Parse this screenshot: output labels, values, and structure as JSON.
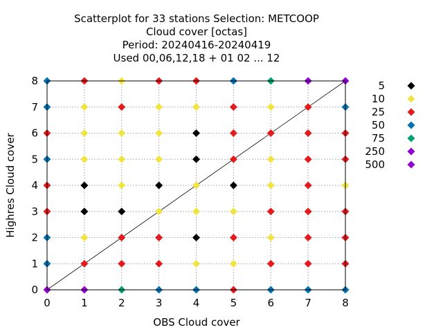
{
  "chart_data": {
    "type": "scatter",
    "title_lines": [
      "Scatterplot for   33 stations Selection: METCOOP",
      "Cloud cover [octas]",
      "Period: 20240416-20240419",
      "Used  00,06,12,18 + 01 02 ... 12"
    ],
    "xlabel": "OBS Cloud cover",
    "ylabel": "Highres Cloud cover",
    "xlim": [
      0,
      8
    ],
    "ylim": [
      0,
      8
    ],
    "x_ticks": [
      "0",
      "1",
      "2",
      "3",
      "4",
      "5",
      "6",
      "7",
      "8"
    ],
    "y_ticks": [
      "0",
      "1",
      "2",
      "3",
      "4",
      "5",
      "6",
      "7",
      "8"
    ],
    "grid": true,
    "diagonal": "y = x reference line",
    "legend_position": "right",
    "legend": [
      {
        "label": "5",
        "color": "#000000"
      },
      {
        "label": "10",
        "color": "#f0e442"
      },
      {
        "label": "25",
        "color": "#e41a1c"
      },
      {
        "label": "50",
        "color": "#0072b2"
      },
      {
        "label": "75",
        "color": "#009e73"
      },
      {
        "label": "250",
        "color": "#9400d3"
      },
      {
        "label": "500",
        "color": "#9400d3"
      }
    ],
    "points_grid_rows_y8_to_y0": [
      [
        50,
        25,
        10,
        25,
        25,
        50,
        75,
        500,
        500
      ],
      [
        50,
        10,
        25,
        10,
        10,
        25,
        10,
        25,
        50
      ],
      [
        25,
        10,
        10,
        10,
        5,
        25,
        25,
        25,
        25
      ],
      [
        50,
        10,
        10,
        10,
        5,
        25,
        10,
        25,
        25
      ],
      [
        25,
        5,
        10,
        5,
        10,
        5,
        10,
        25,
        10
      ],
      [
        25,
        5,
        5,
        10,
        10,
        10,
        25,
        25,
        25
      ],
      [
        50,
        10,
        25,
        25,
        5,
        25,
        10,
        25,
        25
      ],
      [
        50,
        25,
        25,
        25,
        10,
        10,
        25,
        25,
        25
      ],
      [
        500,
        500,
        75,
        50,
        50,
        25,
        50,
        50,
        50
      ]
    ]
  }
}
